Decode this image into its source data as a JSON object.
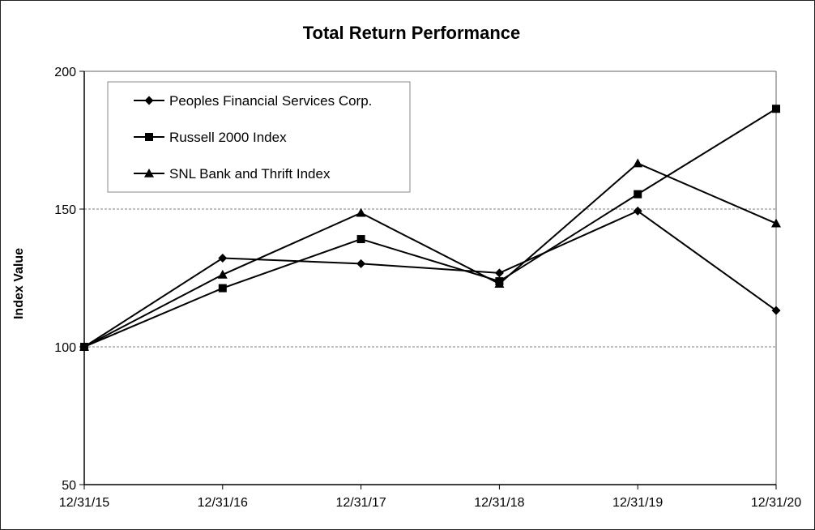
{
  "chart_data": {
    "type": "line",
    "title": "Total Return Performance",
    "xlabel": "",
    "ylabel": "Index Value",
    "x": [
      "12/31/15",
      "12/31/16",
      "12/31/17",
      "12/31/18",
      "12/31/19",
      "12/31/20"
    ],
    "yticks": [
      50,
      100,
      150,
      200
    ],
    "ylim": [
      50,
      200
    ],
    "grid": "horizontal dashed",
    "legend_position": "top-left",
    "series": [
      {
        "name": "Peoples Financial Services Corp.",
        "marker": "diamond",
        "values": [
          100,
          132.2,
          130.2,
          126.8,
          149.3,
          113.2
        ]
      },
      {
        "name": "Russell 2000 Index",
        "marker": "square",
        "values": [
          100,
          121.3,
          139.1,
          123.8,
          155.4,
          186.4
        ]
      },
      {
        "name": "SNL Bank and Thrift Index",
        "marker": "triangle",
        "values": [
          100,
          126.2,
          148.6,
          122.9,
          166.6,
          144.8
        ]
      }
    ],
    "colors": {
      "line": "#000000",
      "grid": "#808080"
    }
  }
}
